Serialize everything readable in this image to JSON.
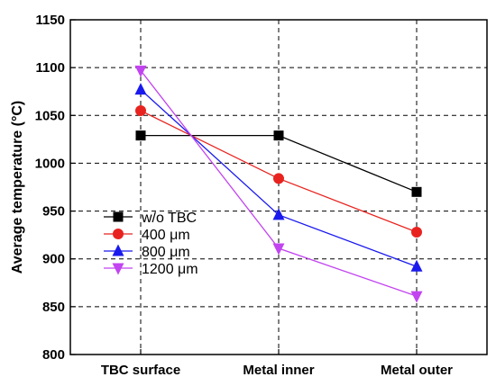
{
  "chart_data": {
    "type": "line",
    "title": "",
    "xlabel": "",
    "ylabel": "Average temperature (°C)",
    "categories": [
      "TBC surface",
      "Metal inner",
      "Metal outer"
    ],
    "ylim": [
      800,
      1150
    ],
    "yticks": [
      800,
      850,
      900,
      950,
      1000,
      1050,
      1100,
      1150
    ],
    "grid": true,
    "legend_position": "bottom-left",
    "series": [
      {
        "name": "w/o TBC",
        "color": "#000000",
        "marker": "square",
        "values": [
          1029,
          1029,
          970
        ]
      },
      {
        "name": "400 μm",
        "color": "#e8231f",
        "marker": "circle",
        "values": [
          1055,
          984,
          928
        ]
      },
      {
        "name": "800 μm",
        "color": "#1a1aee",
        "marker": "triangle-up",
        "values": [
          1077,
          946,
          892
        ]
      },
      {
        "name": "1200 μm",
        "color": "#c244f0",
        "marker": "triangle-down",
        "values": [
          1097,
          911,
          861
        ]
      }
    ]
  }
}
